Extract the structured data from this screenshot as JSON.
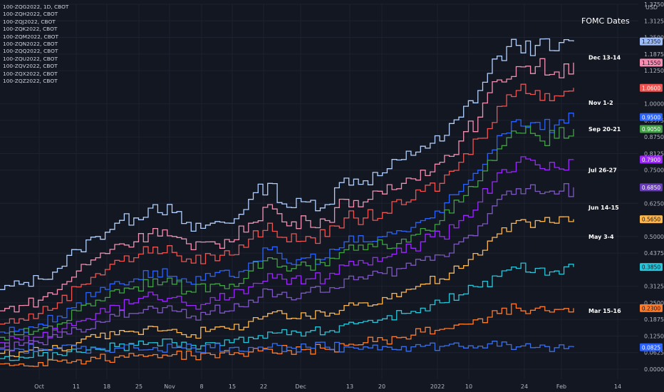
{
  "legend": {
    "items": [
      "100-ZQG2022, 1D, CBOT",
      "100-ZQH2022, CBOT",
      "100-ZQJ2022, CBOT",
      "100-ZQK2022, CBOT",
      "100-ZQM2022, CBOT",
      "100-ZQN2022, CBOT",
      "100-ZQQ2022, CBOT",
      "100-ZQU2022, CBOT",
      "100-ZQV2022, CBOT",
      "100-ZQX2022, CBOT",
      "100-ZQZ2022, CBOT"
    ]
  },
  "chart_data": {
    "type": "line",
    "title": "FOMC Dates",
    "currency": "USD",
    "x_ticks": [
      "Oct",
      "11",
      "18",
      "25",
      "Nov",
      "8",
      "15",
      "22",
      "Dec",
      "13",
      "20",
      "2022",
      "10",
      "24",
      "Feb",
      "14"
    ],
    "y_ticks": [
      "1.3750",
      "1.3125",
      "1.2500",
      "1.1875",
      "1.1250",
      "1.0000",
      "0.9375",
      "0.8750",
      "0.8125",
      "0.7500",
      "0.6250",
      "0.5000",
      "0.4375",
      "0.3125",
      "0.2500",
      "0.1875",
      "0.1250",
      "0.0625",
      "0.0000"
    ],
    "y_range": [
      0,
      1.375
    ],
    "event_labels": [
      {
        "label": "Dec 13-14",
        "y": 1.175
      },
      {
        "label": "Nov 1-2",
        "y": 1.005
      },
      {
        "label": "Sep 20-21",
        "y": 0.905
      },
      {
        "label": "Jul 26-27",
        "y": 0.75
      },
      {
        "label": "Jun 14-15",
        "y": 0.61
      },
      {
        "label": "May 3-4",
        "y": 0.5
      },
      {
        "label": "Mar 15-16",
        "y": 0.22
      }
    ],
    "series": [
      {
        "color": "#b2d0ff",
        "last": "1.2350",
        "start": 0.3,
        "path": [
          0.3,
          0.32,
          0.34,
          0.38,
          0.45,
          0.5,
          0.55,
          0.57,
          0.62,
          0.59,
          0.52,
          0.55,
          0.55,
          0.64,
          0.7,
          0.61,
          0.63,
          0.62,
          0.72,
          0.71,
          0.74,
          0.79,
          0.84,
          0.86,
          0.95,
          1.05,
          1.18,
          1.22,
          1.22,
          1.2,
          1.235
        ],
        "badge_bg": "#9dbcf8",
        "badge_fg": "#131722"
      },
      {
        "color": "#f48fb1",
        "last": "1.1550",
        "start": 0.22,
        "path": [
          0.22,
          0.24,
          0.26,
          0.3,
          0.37,
          0.42,
          0.47,
          0.48,
          0.53,
          0.5,
          0.45,
          0.48,
          0.48,
          0.55,
          0.62,
          0.54,
          0.56,
          0.56,
          0.64,
          0.63,
          0.66,
          0.7,
          0.75,
          0.78,
          0.86,
          0.95,
          1.09,
          1.14,
          1.14,
          1.12,
          1.155
        ],
        "badge_bg": "#f48fb1",
        "badge_fg": "#131722"
      },
      {
        "color": "#ef5350",
        "last": "1.0600",
        "start": 0.17,
        "path": [
          0.17,
          0.19,
          0.21,
          0.25,
          0.31,
          0.36,
          0.41,
          0.42,
          0.46,
          0.44,
          0.4,
          0.43,
          0.43,
          0.49,
          0.55,
          0.48,
          0.5,
          0.5,
          0.57,
          0.57,
          0.59,
          0.62,
          0.67,
          0.7,
          0.78,
          0.87,
          0.99,
          1.05,
          1.05,
          1.03,
          1.06
        ],
        "badge_bg": "#ef5350",
        "badge_fg": "#ffffff"
      },
      {
        "color": "#2962ff",
        "last": "0.9500",
        "start": 0.14,
        "path": [
          0.14,
          0.15,
          0.17,
          0.2,
          0.25,
          0.29,
          0.33,
          0.34,
          0.37,
          0.35,
          0.32,
          0.35,
          0.35,
          0.4,
          0.45,
          0.4,
          0.42,
          0.42,
          0.48,
          0.48,
          0.5,
          0.52,
          0.56,
          0.59,
          0.67,
          0.75,
          0.88,
          0.94,
          0.93,
          0.92,
          0.95
        ],
        "badge_bg": "#2962ff",
        "badge_fg": "#ffffff"
      },
      {
        "color": "#43a047",
        "last": "0.9050",
        "start": 0.12,
        "path": [
          0.12,
          0.13,
          0.15,
          0.17,
          0.22,
          0.26,
          0.3,
          0.31,
          0.34,
          0.32,
          0.29,
          0.32,
          0.32,
          0.37,
          0.42,
          0.37,
          0.39,
          0.39,
          0.45,
          0.45,
          0.47,
          0.49,
          0.53,
          0.56,
          0.63,
          0.71,
          0.83,
          0.89,
          0.88,
          0.87,
          0.905
        ],
        "badge_bg": "#43a047",
        "badge_fg": "#ffffff"
      },
      {
        "color": "#9c27ff",
        "last": "0.7900",
        "start": 0.1,
        "path": [
          0.1,
          0.11,
          0.12,
          0.14,
          0.18,
          0.21,
          0.24,
          0.25,
          0.28,
          0.27,
          0.24,
          0.27,
          0.27,
          0.31,
          0.36,
          0.32,
          0.34,
          0.34,
          0.39,
          0.4,
          0.42,
          0.44,
          0.48,
          0.5,
          0.56,
          0.63,
          0.74,
          0.78,
          0.77,
          0.76,
          0.79
        ],
        "badge_bg": "#9c27ff",
        "badge_fg": "#ffffff"
      },
      {
        "color": "#7e57c2",
        "last": "0.6850",
        "start": 0.08,
        "path": [
          0.08,
          0.09,
          0.1,
          0.12,
          0.15,
          0.18,
          0.2,
          0.21,
          0.23,
          0.22,
          0.2,
          0.22,
          0.22,
          0.26,
          0.3,
          0.27,
          0.29,
          0.29,
          0.34,
          0.34,
          0.36,
          0.38,
          0.41,
          0.43,
          0.48,
          0.54,
          0.64,
          0.68,
          0.67,
          0.66,
          0.685
        ],
        "badge_bg": "#673ab7",
        "badge_fg": "#ffffff"
      },
      {
        "color": "#ffb74d",
        "last": "0.5650",
        "start": 0.06,
        "path": [
          0.06,
          0.065,
          0.07,
          0.08,
          0.1,
          0.12,
          0.13,
          0.14,
          0.16,
          0.15,
          0.13,
          0.15,
          0.15,
          0.18,
          0.21,
          0.19,
          0.2,
          0.2,
          0.24,
          0.25,
          0.27,
          0.29,
          0.32,
          0.34,
          0.38,
          0.43,
          0.51,
          0.56,
          0.56,
          0.55,
          0.565
        ],
        "badge_bg": "#ffb74d",
        "badge_fg": "#131722"
      },
      {
        "color": "#26c6da",
        "last": "0.3850",
        "start": 0.04,
        "path": [
          0.04,
          0.045,
          0.05,
          0.055,
          0.065,
          0.075,
          0.085,
          0.09,
          0.1,
          0.1,
          0.09,
          0.1,
          0.1,
          0.12,
          0.14,
          0.13,
          0.14,
          0.14,
          0.17,
          0.18,
          0.19,
          0.21,
          0.23,
          0.25,
          0.28,
          0.31,
          0.35,
          0.38,
          0.38,
          0.37,
          0.385
        ],
        "badge_bg": "#26c6da",
        "badge_fg": "#131722"
      },
      {
        "color": "#ff7a29",
        "last": "0.2300",
        "start": 0.02,
        "path": [
          0.02,
          0.02,
          0.025,
          0.03,
          0.035,
          0.04,
          0.045,
          0.05,
          0.055,
          0.055,
          0.05,
          0.055,
          0.055,
          0.065,
          0.075,
          0.07,
          0.075,
          0.075,
          0.09,
          0.1,
          0.11,
          0.12,
          0.14,
          0.15,
          0.17,
          0.19,
          0.21,
          0.23,
          0.23,
          0.225,
          0.23
        ],
        "badge_bg": "#ff7a29",
        "badge_fg": "#131722"
      },
      {
        "color": "#3a6fe8",
        "last": "0.0825",
        "start": 0.08,
        "path": [
          0.075,
          0.075,
          0.076,
          0.077,
          0.078,
          0.079,
          0.079,
          0.08,
          0.081,
          0.081,
          0.08,
          0.081,
          0.081,
          0.082,
          0.083,
          0.083,
          0.083,
          0.083,
          0.084,
          0.084,
          0.085,
          0.085,
          0.086,
          0.086,
          0.086,
          0.087,
          0.087,
          0.084,
          0.082,
          0.081,
          0.0825
        ],
        "badge_bg": "#2962ff",
        "badge_fg": "#ffffff"
      }
    ]
  }
}
